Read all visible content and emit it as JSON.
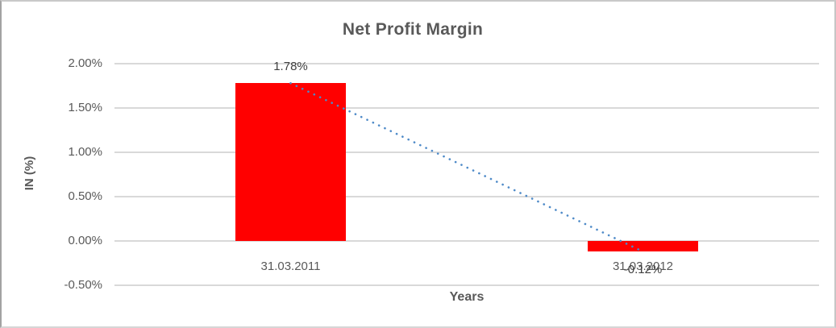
{
  "chart_data": {
    "type": "bar",
    "title": "Net Profit Margin",
    "categories": [
      "31.03.2011",
      "31.03.2012"
    ],
    "values": [
      1.78,
      -0.12
    ],
    "data_labels": [
      "1.78%",
      "-0.12%"
    ],
    "xlabel": "Years",
    "ylabel": "IN (%)",
    "ylim": [
      -0.5,
      2.0
    ],
    "ytick_step": 0.5,
    "yticks": [
      "2.00%",
      "1.50%",
      "1.00%",
      "0.50%",
      "0.00%",
      "-0.50%"
    ],
    "grid": true,
    "legend": "none",
    "trendline": {
      "type": "linear",
      "style": "dotted",
      "from_value": 1.78,
      "to_value": -0.12
    },
    "colors": {
      "bar": "#FF0000",
      "trendline": "#4E8AC8",
      "gridline": "#D9D9D9",
      "text": "#595959"
    }
  }
}
